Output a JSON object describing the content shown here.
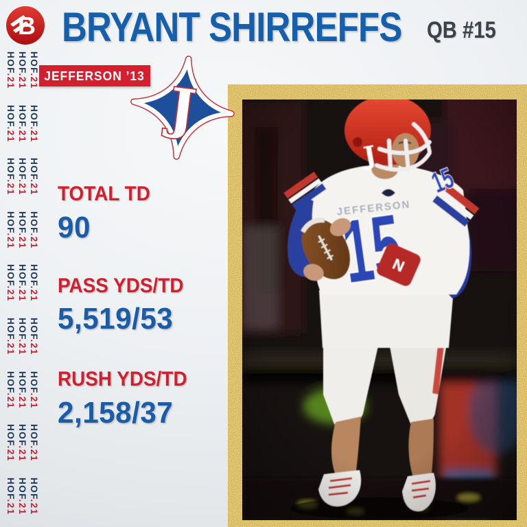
{
  "brand": {
    "logo_letter": "B"
  },
  "strip": {
    "hof": "HOF",
    "dot": ".",
    "year": "21",
    "columns": 3,
    "blocks": 9,
    "navy_color": "#21395b",
    "red_color": "#c31e2e"
  },
  "header": {
    "title": "BRYANT SHIRREFFS",
    "position_badge": "QB #15"
  },
  "class_badge": {
    "label": "JEFFERSON ’13"
  },
  "school_logo": {
    "letter": "J"
  },
  "stats": [
    {
      "label": "TOTAL TD",
      "value": "90"
    },
    {
      "label": "PASS YDS/TD",
      "value": "5,519/53"
    },
    {
      "label": "RUSH YDS/TD",
      "value": "2,158/37"
    }
  ],
  "photo": {
    "helmet_letter": "J",
    "jersey_name": "JEFFERSON",
    "jersey_number": "15",
    "shoulder_number": "15",
    "wristband_letter": "N"
  },
  "colors": {
    "title_blue": "#1660ab",
    "stat_value_blue": "#1a5da6",
    "accent_red": "#d51f2e",
    "navy": "#21395b",
    "dark_text": "#3c4249",
    "gold": "#dd9a00",
    "page_bg": "#eef1f3"
  }
}
